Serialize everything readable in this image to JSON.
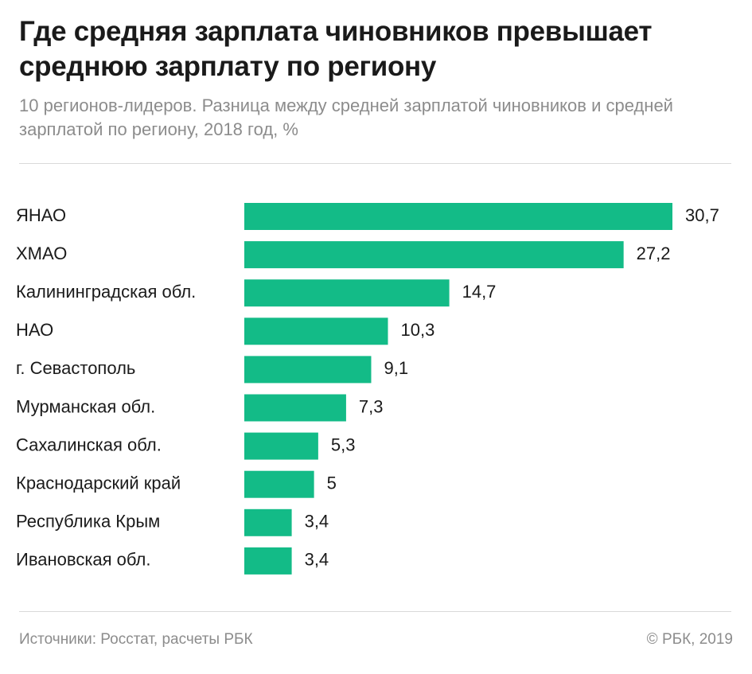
{
  "title": "Где средняя зарплата чиновников превышает среднюю зарплату по региону",
  "subtitle": "10 регионов-лидеров. Разница между средней зарплатой чиновников и средней зарплатой по региону, 2018 год, %",
  "colors": {
    "bar": "#13bb87",
    "text": "#1a1a1a",
    "muted": "#8c8c8c",
    "divider": "#d9d9d9"
  },
  "footer": {
    "source": "Источники: Росстат, расчеты РБК",
    "copyright": "© РБК, 2019"
  },
  "chart_data": {
    "type": "bar",
    "orientation": "horizontal",
    "title": "Где средняя зарплата чиновников превышает среднюю зарплату по региону",
    "xlabel": "",
    "ylabel": "",
    "unit": "%",
    "xlim": [
      0,
      30.7
    ],
    "grid": false,
    "legend": "none",
    "categories": [
      "ЯНАО",
      "ХМАО",
      "Калининградская обл.",
      "НАО",
      "г. Севастополь",
      "Мурманская обл.",
      "Сахалинская обл.",
      "Краснодарский край",
      "Республика Крым",
      "Ивановская обл."
    ],
    "values": [
      30.7,
      27.2,
      14.7,
      10.3,
      9.1,
      7.3,
      5.3,
      5,
      3.4,
      3.4
    ],
    "value_labels": [
      "30,7",
      "27,2",
      "14,7",
      "10,3",
      "9,1",
      "7,3",
      "5,3",
      "5",
      "3,4",
      "3,4"
    ]
  }
}
